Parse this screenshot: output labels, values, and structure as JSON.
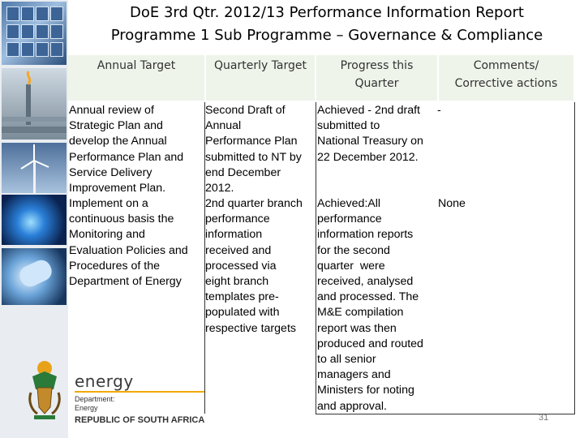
{
  "title": {
    "line1": "DoE 3rd Qtr. 2012/13 Performance Information Report",
    "line2": "Programme 1 Sub Programme – Governance & Compliance"
  },
  "table": {
    "headers": [
      "Annual Target",
      "Quarterly Target",
      "Progress this\nQuarter",
      "Comments/\nCorrective actions"
    ],
    "rows": [
      {
        "annual_target": "Annual review of\nStrategic Plan and\ndevelop the Annual\nPerformance Plan and\nService Delivery\nImprovement Plan.",
        "quarterly_target": "Second Draft of\nAnnual\nPerformance Plan\nsubmitted to NT by\nend December\n2012.",
        "progress": "Achieved - 2nd draft\nsubmitted to\nNational Treasury on\n22 December 2012.",
        "comments": "-"
      },
      {
        "annual_target": "Implement on a\ncontinuous basis the\nMonitoring and\nEvaluation Policies and\nProcedures of the\nDepartment of Energy",
        "quarterly_target": "2nd quarter branch\nperformance\ninformation\nreceived and\nprocessed via\neight branch\ntemplates pre-\npopulated with\nrespective targets",
        "progress": "Achieved:All\nperformance\ninformation reports\nfor the second\nquarter  were\nreceived, analysed\nand processed. The\nM&E compilation\nreport was then\nproduced and routed\nto all senior\nmanagers and\nMinisters for noting\nand approval.",
        "comments": "None"
      }
    ]
  },
  "footer": {
    "brand": "energy",
    "department": "Department:\nEnergy",
    "country": "REPUBLIC OF SOUTH AFRICA",
    "page_number": "31"
  },
  "colors": {
    "header_bg": "#eef4ea",
    "accent": "#f2a900",
    "sidebar_bg": "#e9edf1"
  }
}
